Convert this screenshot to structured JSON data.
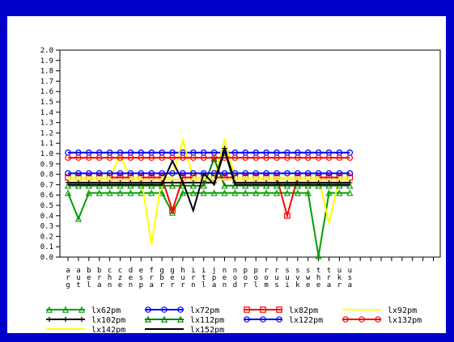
{
  "chart_data": {
    "type": "line",
    "title": "",
    "xlabel": "",
    "ylabel": "",
    "ylim": [
      0.0,
      2.0
    ],
    "yticks": [
      "0.0",
      "0.1",
      "0.2",
      "0.3",
      "0.4",
      "0.5",
      "0.6",
      "0.7",
      "0.8",
      "0.9",
      "1.0",
      "1.1",
      "1.2",
      "1.3",
      "1.4",
      "1.5",
      "1.6",
      "1.7",
      "1.8",
      "1.9",
      "2.0"
    ],
    "categories": [
      [
        "a",
        "r",
        "g"
      ],
      [
        "a",
        "u",
        "t"
      ],
      [
        "b",
        "e",
        "l"
      ],
      [
        "b",
        "r",
        "a"
      ],
      [
        "c",
        "h",
        "n"
      ],
      [
        "c",
        "z",
        "e"
      ],
      [
        "d",
        "e",
        "n"
      ],
      [
        "e",
        "s",
        "p"
      ],
      [
        "f",
        "r",
        "a"
      ],
      [
        "g",
        "b",
        "r"
      ],
      [
        "g",
        "e",
        "r"
      ],
      [
        "h",
        "u",
        "r"
      ],
      [
        "i",
        "r",
        "n"
      ],
      [
        "i",
        "t",
        "l"
      ],
      [
        "j",
        "p",
        "a"
      ],
      [
        "n",
        "e",
        "n"
      ],
      [
        "n",
        "o",
        "d"
      ],
      [
        "p",
        "o",
        "r"
      ],
      [
        "p",
        "o",
        "l"
      ],
      [
        "r",
        "o",
        "m"
      ],
      [
        "r",
        "u",
        "s"
      ],
      [
        "s",
        "u",
        "i"
      ],
      [
        "s",
        "v",
        "k"
      ],
      [
        "s",
        "w",
        "e"
      ],
      [
        "t",
        "h",
        "e"
      ],
      [
        "t",
        "r",
        "a"
      ],
      [
        "u",
        "k",
        "r"
      ],
      [
        "u",
        "s",
        "a"
      ]
    ],
    "grid": false,
    "legend_position": "bottom",
    "series": [
      {
        "name": "lx62pm",
        "color": "#00a000",
        "marker": "triangle",
        "values": [
          0.62,
          0.37,
          0.62,
          0.62,
          0.62,
          0.62,
          0.62,
          0.62,
          0.62,
          0.62,
          0.43,
          0.62,
          0.62,
          0.62,
          0.62,
          0.62,
          0.62,
          0.62,
          0.62,
          0.62,
          0.62,
          0.62,
          0.62,
          0.62,
          0.01,
          0.62,
          0.62,
          0.62
        ]
      },
      {
        "name": "lx72pm",
        "color": "#0000ff",
        "marker": "circle",
        "values": [
          1.01,
          1.01,
          1.01,
          1.01,
          1.01,
          1.01,
          1.01,
          1.01,
          1.01,
          1.01,
          1.01,
          1.01,
          1.01,
          1.01,
          1.01,
          1.01,
          1.01,
          1.01,
          1.01,
          1.01,
          1.01,
          1.01,
          1.01,
          1.01,
          1.01,
          1.01,
          1.01,
          1.01
        ]
      },
      {
        "name": "lx82pm",
        "color": "#ff0000",
        "marker": "square",
        "values": [
          0.77,
          0.77,
          0.77,
          0.77,
          0.77,
          0.77,
          0.77,
          0.77,
          0.77,
          0.77,
          0.45,
          0.77,
          0.77,
          0.77,
          0.77,
          0.77,
          0.77,
          0.77,
          0.77,
          0.77,
          0.77,
          0.4,
          0.77,
          0.77,
          0.77,
          0.77,
          0.77,
          0.77
        ]
      },
      {
        "name": "lx92pm",
        "color": "#ffff00",
        "marker": "none",
        "values": [
          0.77,
          0.77,
          0.77,
          0.77,
          0.77,
          0.98,
          0.77,
          0.77,
          0.12,
          0.77,
          0.77,
          1.13,
          0.77,
          0.77,
          0.77,
          1.13,
          0.77,
          0.77,
          0.77,
          0.77,
          0.77,
          0.77,
          0.77,
          0.77,
          0.77,
          0.33,
          0.77,
          0.77
        ]
      },
      {
        "name": "lx102pm",
        "color": "#000000",
        "marker": "plus",
        "values": [
          0.72,
          0.72,
          0.72,
          0.72,
          0.72,
          0.72,
          0.72,
          0.72,
          0.72,
          0.72,
          0.72,
          0.72,
          0.72,
          0.72,
          0.72,
          1.05,
          0.72,
          0.72,
          0.72,
          0.72,
          0.72,
          0.72,
          0.72,
          0.72,
          0.72,
          0.72,
          0.72,
          0.72
        ]
      },
      {
        "name": "lx112pm",
        "color": "#008000",
        "marker": "triangle",
        "values": [
          0.69,
          0.69,
          0.69,
          0.69,
          0.69,
          0.69,
          0.69,
          0.69,
          0.69,
          0.69,
          0.69,
          0.69,
          0.69,
          0.69,
          0.95,
          0.69,
          0.69,
          0.69,
          0.69,
          0.69,
          0.69,
          0.69,
          0.69,
          0.69,
          0.69,
          0.69,
          0.69,
          0.69
        ]
      },
      {
        "name": "lx122pm",
        "color": "#0000ff",
        "marker": "circle",
        "values": [
          0.81,
          0.81,
          0.81,
          0.81,
          0.81,
          0.81,
          0.81,
          0.81,
          0.81,
          0.81,
          0.81,
          0.81,
          0.81,
          0.81,
          0.81,
          0.81,
          0.81,
          0.81,
          0.81,
          0.81,
          0.81,
          0.81,
          0.81,
          0.81,
          0.81,
          0.81,
          0.81,
          0.81
        ]
      },
      {
        "name": "lx132pm",
        "color": "#ff0000",
        "marker": "circle",
        "values": [
          0.96,
          0.96,
          0.96,
          0.96,
          0.96,
          0.96,
          0.96,
          0.96,
          0.96,
          0.96,
          0.96,
          0.96,
          0.96,
          0.96,
          0.96,
          0.96,
          0.96,
          0.96,
          0.96,
          0.96,
          0.96,
          0.96,
          0.96,
          0.96,
          0.96,
          0.96,
          0.96,
          0.96
        ]
      },
      {
        "name": "lx142pm",
        "color": "#ffff00",
        "marker": "none",
        "values": [
          0.75,
          0.75,
          0.75,
          0.75,
          0.75,
          0.75,
          0.75,
          0.75,
          0.75,
          0.75,
          0.75,
          0.75,
          0.75,
          0.75,
          0.75,
          0.75,
          0.75,
          0.75,
          0.75,
          0.75,
          0.75,
          0.75,
          0.75,
          0.75,
          0.75,
          0.75,
          0.75,
          0.75
        ]
      },
      {
        "name": "lx152pm",
        "color": "#000000",
        "marker": "none",
        "values": [
          0.7,
          0.7,
          0.7,
          0.7,
          0.7,
          0.7,
          0.7,
          0.7,
          0.7,
          0.7,
          0.93,
          0.73,
          0.45,
          0.81,
          0.7,
          1.03,
          0.7,
          0.7,
          0.7,
          0.7,
          0.7,
          0.7,
          0.7,
          0.7,
          0.7,
          0.7,
          0.7,
          0.7
        ]
      }
    ]
  }
}
